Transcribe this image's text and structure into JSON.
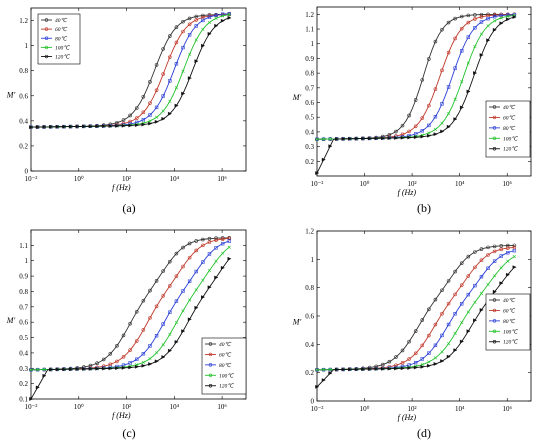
{
  "figure": {
    "panel_labels": [
      "(a)",
      "(b)",
      "(c)",
      "(d)"
    ]
  },
  "chart_data": [
    {
      "type": "line",
      "xscale": "log",
      "xlabel": "f (Hz)",
      "ylabel": "M′",
      "xlim": [
        0.01,
        10000000
      ],
      "ylim": [
        0,
        1.3
      ],
      "x_ticks": [
        "10⁻²",
        "10⁰",
        "10²",
        "10⁴",
        "10⁶"
      ],
      "x_tick_values": [
        0.01,
        1,
        100,
        10000,
        1000000
      ],
      "y_ticks": [
        "0",
        "0.2",
        "0.4",
        "0.6",
        "0.8",
        "1",
        "1.2"
      ],
      "y_tick_values": [
        0,
        0.2,
        0.4,
        0.6,
        0.8,
        1,
        1.2
      ],
      "legend": "top-left",
      "series": [
        {
          "name": "40℃",
          "color": "#333333",
          "marker": "circle",
          "low": 0.35,
          "high": 1.25,
          "mid": 1500,
          "width": 0.45
        },
        {
          "name": "60℃",
          "color": "#c0392b",
          "marker": "circle",
          "low": 0.35,
          "high": 1.25,
          "mid": 4000,
          "width": 0.45
        },
        {
          "name": "80℃",
          "color": "#2b3fd6",
          "marker": "square",
          "low": 0.35,
          "high": 1.26,
          "mid": 10000,
          "width": 0.45
        },
        {
          "name": "100℃",
          "color": "#22c22b",
          "marker": "x",
          "low": 0.35,
          "high": 1.26,
          "mid": 25000,
          "width": 0.45
        },
        {
          "name": "120℃",
          "color": "#111111",
          "marker": "triangle",
          "low": 0.35,
          "high": 1.25,
          "mid": 60000,
          "width": 0.45
        }
      ]
    },
    {
      "type": "line",
      "xscale": "log",
      "xlabel": "f (Hz)",
      "ylabel": "M′",
      "xlim": [
        0.01,
        10000000
      ],
      "ylim": [
        0.1,
        1.25
      ],
      "x_ticks": [
        "10⁻²",
        "10⁰",
        "10²",
        "10⁴",
        "10⁶"
      ],
      "x_tick_values": [
        0.01,
        1,
        100,
        10000,
        1000000
      ],
      "y_ticks": [
        "0.2",
        "0.3",
        "0.4",
        "0.5",
        "0.6",
        "0.7",
        "0.8",
        "0.9",
        "1",
        "1.1",
        "1.2"
      ],
      "y_tick_values": [
        0.2,
        0.3,
        0.4,
        0.5,
        0.6,
        0.7,
        0.8,
        0.9,
        1,
        1.1,
        1.2
      ],
      "legend": "lower-right",
      "series": [
        {
          "name": "40℃",
          "color": "#333333",
          "marker": "circle",
          "low": 0.35,
          "high": 1.2,
          "mid": 300,
          "width": 0.4
        },
        {
          "name": "60℃",
          "color": "#c0392b",
          "marker": "circle",
          "low": 0.35,
          "high": 1.2,
          "mid": 1500,
          "width": 0.45
        },
        {
          "name": "80℃",
          "color": "#2b3fd6",
          "marker": "square",
          "low": 0.35,
          "high": 1.2,
          "mid": 5000,
          "width": 0.45
        },
        {
          "name": "100℃",
          "color": "#22c22b",
          "marker": "x",
          "low": 0.35,
          "high": 1.2,
          "mid": 15000,
          "width": 0.45
        },
        {
          "name": "120℃",
          "color": "#111111",
          "marker": "triangle",
          "low": 0.35,
          "high": 1.2,
          "mid": 40000,
          "width": 0.45,
          "start_low": 0.12
        }
      ]
    },
    {
      "type": "line",
      "xscale": "log",
      "xlabel": "f (Hz)",
      "ylabel": "M′",
      "xlim": [
        0.01,
        10000000
      ],
      "ylim": [
        0.1,
        1.2
      ],
      "x_ticks": [
        "10⁻²",
        "10⁰",
        "10²",
        "10⁴",
        "10⁶"
      ],
      "x_tick_values": [
        0.01,
        1,
        100,
        10000,
        1000000
      ],
      "y_ticks": [
        "0.1",
        "0.2",
        "0.3",
        "0.4",
        "0.5",
        "0.6",
        "0.7",
        "0.8",
        "0.9",
        "1",
        "1.1"
      ],
      "y_tick_values": [
        0.1,
        0.2,
        0.3,
        0.4,
        0.5,
        0.6,
        0.7,
        0.8,
        0.9,
        1,
        1.1
      ],
      "legend": "lower-right",
      "series": [
        {
          "name": "40℃",
          "color": "#333333",
          "marker": "circle",
          "low": 0.29,
          "high": 1.15,
          "mid": 120,
          "width": 0.5,
          "plateau": 0.85
        },
        {
          "name": "60℃",
          "color": "#c0392b",
          "marker": "circle",
          "low": 0.29,
          "high": 1.15,
          "mid": 600,
          "width": 0.5,
          "plateau": 0.85
        },
        {
          "name": "80℃",
          "color": "#2b3fd6",
          "marker": "square",
          "low": 0.29,
          "high": 1.15,
          "mid": 3000,
          "width": 0.5,
          "plateau": 0.85
        },
        {
          "name": "100℃",
          "color": "#22c22b",
          "marker": "x",
          "low": 0.29,
          "high": 1.15,
          "mid": 10000,
          "width": 0.5,
          "plateau": 0.85
        },
        {
          "name": "120℃",
          "color": "#111111",
          "marker": "triangle",
          "low": 0.29,
          "high": 1.15,
          "mid": 30000,
          "width": 0.5,
          "plateau": 0.85,
          "start_low": 0.1
        }
      ]
    },
    {
      "type": "line",
      "xscale": "log",
      "xlabel": "f (Hz)",
      "ylabel": "M′",
      "xlim": [
        0.01,
        10000000
      ],
      "ylim": [
        0,
        1.2
      ],
      "x_ticks": [
        "10⁻²",
        "10⁰",
        "10²",
        "10⁴",
        "10⁶"
      ],
      "x_tick_values": [
        0.01,
        1,
        100,
        10000,
        1000000
      ],
      "y_ticks": [
        "0",
        "0.2",
        "0.4",
        "0.6",
        "0.8",
        "1",
        "1.2"
      ],
      "y_tick_values": [
        0,
        0.2,
        0.4,
        0.6,
        0.8,
        1,
        1.2
      ],
      "legend": "top-right",
      "series": [
        {
          "name": "40℃",
          "color": "#333333",
          "marker": "circle",
          "low": 0.22,
          "high": 1.1,
          "mid": 150,
          "width": 0.5,
          "plateau": 0.78
        },
        {
          "name": "60℃",
          "color": "#c0392b",
          "marker": "circle",
          "low": 0.22,
          "high": 1.09,
          "mid": 700,
          "width": 0.5,
          "plateau": 0.78
        },
        {
          "name": "80℃",
          "color": "#2b3fd6",
          "marker": "square",
          "low": 0.22,
          "high": 1.08,
          "mid": 2500,
          "width": 0.5,
          "plateau": 0.78
        },
        {
          "name": "100℃",
          "color": "#22c22b",
          "marker": "x",
          "low": 0.22,
          "high": 1.07,
          "mid": 8000,
          "width": 0.5,
          "plateau": 0.78
        },
        {
          "name": "120℃",
          "color": "#111111",
          "marker": "triangle",
          "low": 0.22,
          "high": 1.06,
          "mid": 25000,
          "width": 0.5,
          "plateau": 0.78,
          "start_low": 0.1
        }
      ]
    }
  ]
}
